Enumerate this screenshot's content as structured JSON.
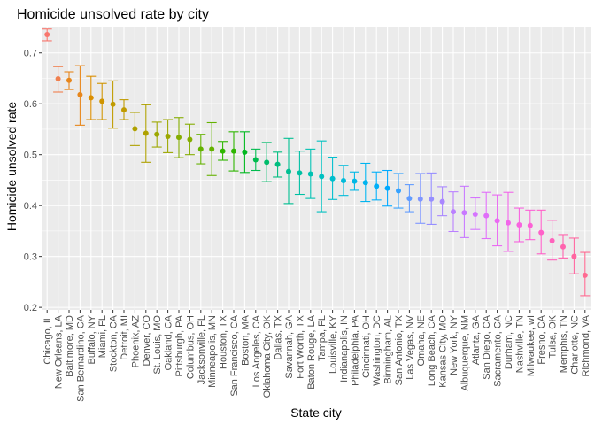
{
  "chart_data": {
    "type": "scatter",
    "title": "Homicide unsolved rate by city",
    "xlabel": "State city",
    "ylabel": "Homicide unsolved rate",
    "ylim": [
      0.195,
      0.75
    ],
    "yticks": [
      0.2,
      0.3,
      0.4,
      0.5,
      0.6,
      0.7
    ],
    "ytick_labels": [
      "0.2",
      "0.3",
      "0.4",
      "0.5",
      "0.6",
      "0.7"
    ],
    "grid": true,
    "legend": "none",
    "error_bars": true,
    "panel_color": "#EBEBEB",
    "points": [
      {
        "city": "Chicago, IL",
        "estimate": 0.736,
        "low": 0.724,
        "high": 0.747,
        "color": "#F8766D"
      },
      {
        "city": "New Orleans, LA",
        "estimate": 0.649,
        "low": 0.623,
        "high": 0.673,
        "color": "#F07F4E"
      },
      {
        "city": "Baltimore, MD",
        "estimate": 0.646,
        "low": 0.628,
        "high": 0.663,
        "color": "#E7861B"
      },
      {
        "city": "San Bernardino, CA",
        "estimate": 0.618,
        "low": 0.558,
        "high": 0.675,
        "color": "#E7861B"
      },
      {
        "city": "Buffalo, NY",
        "estimate": 0.612,
        "low": 0.569,
        "high": 0.654,
        "color": "#DB8E00"
      },
      {
        "city": "Miami, FL",
        "estimate": 0.605,
        "low": 0.569,
        "high": 0.64,
        "color": "#CF9400"
      },
      {
        "city": "Stockton, CA",
        "estimate": 0.599,
        "low": 0.552,
        "high": 0.645,
        "color": "#C09B00"
      },
      {
        "city": "Detroit, MI",
        "estimate": 0.588,
        "low": 0.569,
        "high": 0.608,
        "color": "#C09B00"
      },
      {
        "city": "Phoenix, AZ",
        "estimate": 0.551,
        "low": 0.518,
        "high": 0.583,
        "color": "#AFA100"
      },
      {
        "city": "Denver, CO",
        "estimate": 0.542,
        "low": 0.485,
        "high": 0.598,
        "color": "#AFA100"
      },
      {
        "city": "St. Louis, MO",
        "estimate": 0.54,
        "low": 0.515,
        "high": 0.564,
        "color": "#9CA700"
      },
      {
        "city": "Oakland, CA",
        "estimate": 0.536,
        "low": 0.504,
        "high": 0.569,
        "color": "#9CA700"
      },
      {
        "city": "Pittsburgh, PA",
        "estimate": 0.534,
        "low": 0.494,
        "high": 0.573,
        "color": "#84AD00"
      },
      {
        "city": "Columbus, OH",
        "estimate": 0.53,
        "low": 0.5,
        "high": 0.56,
        "color": "#84AD00"
      },
      {
        "city": "Jacksonville, FL",
        "estimate": 0.511,
        "low": 0.482,
        "high": 0.54,
        "color": "#64B200"
      },
      {
        "city": "Minneapolis, MN",
        "estimate": 0.511,
        "low": 0.459,
        "high": 0.563,
        "color": "#64B200"
      },
      {
        "city": "Houston, TX",
        "estimate": 0.507,
        "low": 0.489,
        "high": 0.526,
        "color": "#2EB600"
      },
      {
        "city": "San Francisco, CA",
        "estimate": 0.507,
        "low": 0.468,
        "high": 0.545,
        "color": "#2EB600"
      },
      {
        "city": "Boston, MA",
        "estimate": 0.505,
        "low": 0.465,
        "high": 0.545,
        "color": "#00B81F"
      },
      {
        "city": "Los Angeles, CA",
        "estimate": 0.49,
        "low": 0.469,
        "high": 0.511,
        "color": "#00BB4E"
      },
      {
        "city": "Oklahoma City, OK",
        "estimate": 0.485,
        "low": 0.447,
        "high": 0.524,
        "color": "#00BC6A"
      },
      {
        "city": "Dallas, TX",
        "estimate": 0.481,
        "low": 0.456,
        "high": 0.505,
        "color": "#00BD7F"
      },
      {
        "city": "Savannah, GA",
        "estimate": 0.467,
        "low": 0.404,
        "high": 0.532,
        "color": "#00BF92"
      },
      {
        "city": "Fort Worth, TX",
        "estimate": 0.464,
        "low": 0.422,
        "high": 0.507,
        "color": "#00C0A3"
      },
      {
        "city": "Baton Rouge, LA",
        "estimate": 0.462,
        "low": 0.414,
        "high": 0.511,
        "color": "#00C1B2"
      },
      {
        "city": "Tampa, FL",
        "estimate": 0.457,
        "low": 0.388,
        "high": 0.527,
        "color": "#00C0C0"
      },
      {
        "city": "Louisville, KY",
        "estimate": 0.453,
        "low": 0.412,
        "high": 0.495,
        "color": "#00BECD"
      },
      {
        "city": "Indianapolis, IN",
        "estimate": 0.449,
        "low": 0.42,
        "high": 0.479,
        "color": "#00BBDA"
      },
      {
        "city": "Philadelphia, PA",
        "estimate": 0.448,
        "low": 0.43,
        "high": 0.466,
        "color": "#00B8E5"
      },
      {
        "city": "Cincinnati, OH",
        "estimate": 0.445,
        "low": 0.408,
        "high": 0.483,
        "color": "#00B4EF"
      },
      {
        "city": "Washington, DC",
        "estimate": 0.438,
        "low": 0.411,
        "high": 0.466,
        "color": "#00AFF8"
      },
      {
        "city": "Birmingham, AL",
        "estimate": 0.434,
        "low": 0.399,
        "high": 0.469,
        "color": "#00A9FF"
      },
      {
        "city": "San Antonio, TX",
        "estimate": 0.429,
        "low": 0.395,
        "high": 0.463,
        "color": "#35A2FF"
      },
      {
        "city": "Las Vegas, NV",
        "estimate": 0.414,
        "low": 0.388,
        "high": 0.441,
        "color": "#619CFF"
      },
      {
        "city": "Omaha, NE",
        "estimate": 0.413,
        "low": 0.365,
        "high": 0.463,
        "color": "#7F96FF"
      },
      {
        "city": "Long Beach, CA",
        "estimate": 0.413,
        "low": 0.363,
        "high": 0.464,
        "color": "#968EFF"
      },
      {
        "city": "Kansas City, MO",
        "estimate": 0.408,
        "low": 0.38,
        "high": 0.437,
        "color": "#A987FF"
      },
      {
        "city": "New York, NY",
        "estimate": 0.388,
        "low": 0.349,
        "high": 0.427,
        "color": "#BA80FF"
      },
      {
        "city": "Albuquerque, NM",
        "estimate": 0.386,
        "low": 0.337,
        "high": 0.438,
        "color": "#C879FF"
      },
      {
        "city": "Atlanta, GA",
        "estimate": 0.383,
        "low": 0.353,
        "high": 0.415,
        "color": "#D574FE"
      },
      {
        "city": "San Diego, CA",
        "estimate": 0.38,
        "low": 0.335,
        "high": 0.426,
        "color": "#E06EF9"
      },
      {
        "city": "Sacramento, CA",
        "estimate": 0.37,
        "low": 0.321,
        "high": 0.421,
        "color": "#EA69F2"
      },
      {
        "city": "Durham, NC",
        "estimate": 0.366,
        "low": 0.31,
        "high": 0.426,
        "color": "#F265EA"
      },
      {
        "city": "Nashville, TN",
        "estimate": 0.362,
        "low": 0.329,
        "high": 0.395,
        "color": "#F863DF"
      },
      {
        "city": "Milwaukee, wI",
        "estimate": 0.361,
        "low": 0.333,
        "high": 0.391,
        "color": "#FC61D5"
      },
      {
        "city": "Fresno, CA",
        "estimate": 0.347,
        "low": 0.305,
        "high": 0.391,
        "color": "#FF61C9"
      },
      {
        "city": "Tulsa, OK",
        "estimate": 0.331,
        "low": 0.293,
        "high": 0.371,
        "color": "#FF62BC"
      },
      {
        "city": "Memphis, TN",
        "estimate": 0.319,
        "low": 0.297,
        "high": 0.343,
        "color": "#FF64AE"
      },
      {
        "city": "Charlotte, NC",
        "estimate": 0.3,
        "low": 0.266,
        "high": 0.336,
        "color": "#FF66A0"
      },
      {
        "city": "Richmond, VA",
        "estimate": 0.263,
        "low": 0.223,
        "high": 0.308,
        "color": "#FF6A91"
      }
    ]
  }
}
